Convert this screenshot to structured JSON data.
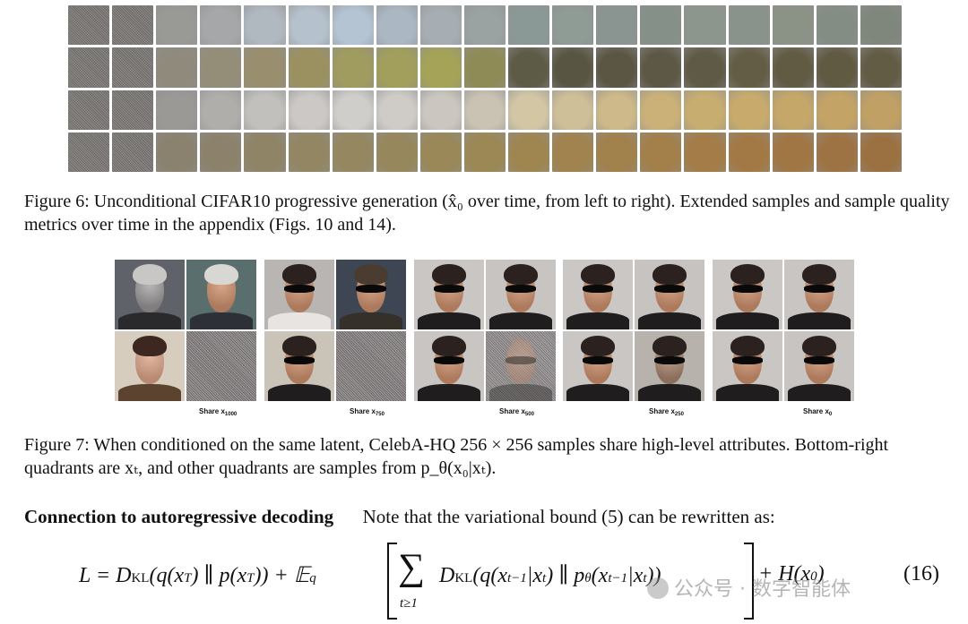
{
  "figure6": {
    "caption_label": "Figure 6:",
    "caption_text": "Unconditional CIFAR10 progressive generation (x̂₀ over time, from left to right). Extended samples and sample quality metrics over time in the appendix (Figs. 10 and 14).",
    "rows": [
      [
        "#897e75",
        "#8e8b84",
        "#999996",
        "#a5a7a9",
        "#b0b8c0",
        "#b5c1cc",
        "#b4c4d3",
        "#abb7c2",
        "#a6aeb3",
        "#9aa3a2",
        "#8b9996",
        "#8f9b95",
        "#8a9591",
        "#859088",
        "#8d968d",
        "#8a938b",
        "#8b9386",
        "#848d84",
        "#7f877c"
      ],
      [
        "#867c76",
        "#8a8479",
        "#8f8a7c",
        "#948e78",
        "#998f6e",
        "#9b9160",
        "#a09b5e",
        "#a19f5b",
        "#a4a358",
        "#8f8b56",
        "#5d5a46",
        "#585542",
        "#5b5643",
        "#5c5845",
        "#5f5a45",
        "#635d45",
        "#615b44",
        "#605a43",
        "#625c45"
      ],
      [
        "#837c78",
        "#8b8783",
        "#9a9996",
        "#afaeab",
        "#c2c0bd",
        "#cbc8c5",
        "#d0ceca",
        "#cfccc8",
        "#cbc7c0",
        "#cac3b3",
        "#d2c6a5",
        "#cfbf98",
        "#cdb989",
        "#cbb178",
        "#c8ad70",
        "#c8ab6c",
        "#c5a769",
        "#c4a366",
        "#c0a064"
      ],
      [
        "#7f7871",
        "#87806f",
        "#8a826f",
        "#8c826b",
        "#8f8466",
        "#928663",
        "#958760",
        "#97875c",
        "#9a8859",
        "#9c8855",
        "#9f8651",
        "#a0834e",
        "#a1814c",
        "#a37f4a",
        "#a37c47",
        "#a27945",
        "#a07644",
        "#9e7343",
        "#9b7142"
      ]
    ]
  },
  "figure7": {
    "caption_label": "Figure 7:",
    "caption_text": "When conditioned on the same latent, CelebA-HQ 256 × 256 samples share high-level attributes. Bottom-right quadrants are xₜ, and other quadrants are samples from p_θ(x₀|xₜ).",
    "groups": [
      {
        "label_prefix": "Share x",
        "label_sub": "1000"
      },
      {
        "label_prefix": "Share x",
        "label_sub": "750"
      },
      {
        "label_prefix": "Share x",
        "label_sub": "500"
      },
      {
        "label_prefix": "Share x",
        "label_sub": "250"
      },
      {
        "label_prefix": "Share x",
        "label_sub": "0"
      }
    ]
  },
  "section": {
    "heading": "Connection to autoregressive decoding",
    "text": "Note that the variational bound (5) can be rewritten as:"
  },
  "equation": {
    "lhs": "L = D",
    "kl": "KL",
    "part1": "(q(x",
    "t": "T",
    "part2": ") ∥ p(x",
    "part3": ")) + 𝔼",
    "q": "q",
    "sigma": "∑",
    "sum_sub": "t≥1",
    "part4": "D",
    "part5": "(q(x",
    "tm1": "t−1",
    "part6": "|x",
    "tt": "t",
    "part7": ") ∥ p",
    "theta": "θ",
    "part8": "(x",
    "part9": "|x",
    "part10": "))",
    "part11": "+ H(x",
    "zero": "0",
    "part12": ")",
    "number": "(16)"
  },
  "watermark": {
    "text": "公众号 · 数字智能体"
  }
}
